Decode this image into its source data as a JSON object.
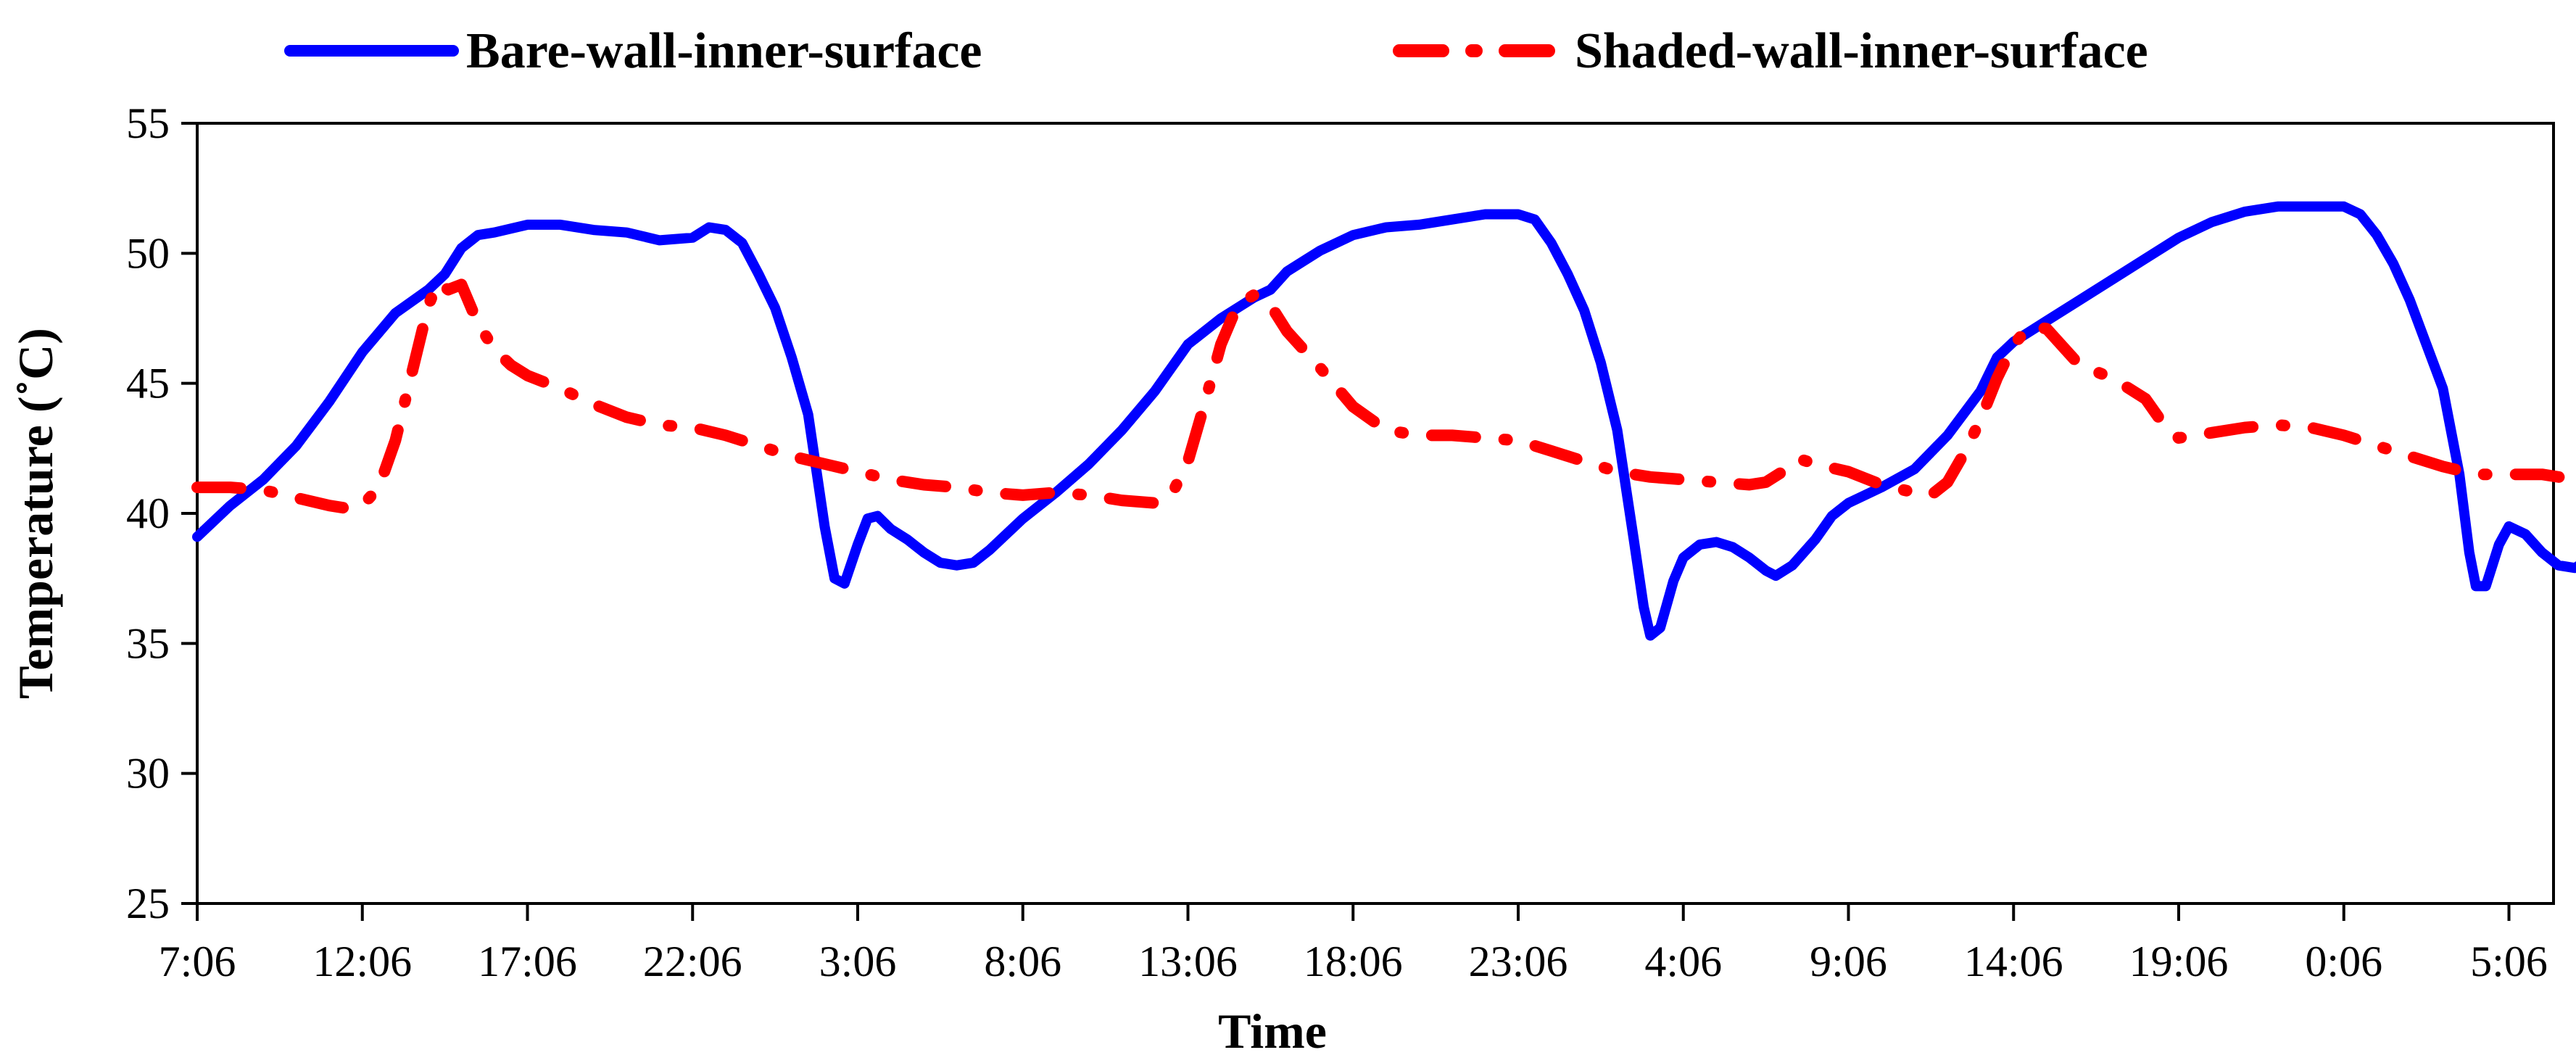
{
  "chart_data": {
    "type": "line",
    "title": "",
    "xlabel": "Time",
    "ylabel": "Temperature (˚C)",
    "ylim": [
      25,
      55
    ],
    "yticks": [
      25,
      30,
      35,
      40,
      45,
      50,
      55
    ],
    "xlim": [
      0,
      72
    ],
    "x_unit": "hours from first tick (7:06)",
    "x_tick_labels": [
      "7:06",
      "12:06",
      "17:06",
      "22:06",
      "3:06",
      "8:06",
      "13:06",
      "18:06",
      "23:06",
      "4:06",
      "9:06",
      "14:06",
      "19:06",
      "0:06",
      "5:06"
    ],
    "legend_position": "top",
    "grid": false,
    "series": [
      {
        "name": "Bare-wall-inner-surface",
        "color": "#0000ff",
        "style": "solid",
        "points": [
          [
            0,
            39.1
          ],
          [
            1,
            40.3
          ],
          [
            2,
            41.3
          ],
          [
            3,
            42.6
          ],
          [
            4,
            44.3
          ],
          [
            5,
            46.2
          ],
          [
            6,
            47.7
          ],
          [
            7,
            48.6
          ],
          [
            7.5,
            49.2
          ],
          [
            8,
            50.2
          ],
          [
            8.5,
            50.7
          ],
          [
            9,
            50.8
          ],
          [
            10,
            51.1
          ],
          [
            11,
            51.1
          ],
          [
            12,
            50.9
          ],
          [
            13,
            50.8
          ],
          [
            14,
            50.5
          ],
          [
            15,
            50.6
          ],
          [
            15.5,
            51.0
          ],
          [
            16,
            50.9
          ],
          [
            16.5,
            50.4
          ],
          [
            17,
            49.2
          ],
          [
            17.5,
            47.9
          ],
          [
            18,
            46.0
          ],
          [
            18.5,
            43.8
          ],
          [
            19,
            39.5
          ],
          [
            19.3,
            37.5
          ],
          [
            19.6,
            37.3
          ],
          [
            20,
            38.8
          ],
          [
            20.3,
            39.8
          ],
          [
            20.6,
            39.9
          ],
          [
            21,
            39.4
          ],
          [
            21.5,
            39.0
          ],
          [
            22,
            38.5
          ],
          [
            22.5,
            38.1
          ],
          [
            23,
            38.0
          ],
          [
            23.5,
            38.1
          ],
          [
            24,
            38.6
          ],
          [
            25,
            39.8
          ],
          [
            26,
            40.8
          ],
          [
            27,
            41.9
          ],
          [
            28,
            43.2
          ],
          [
            29,
            44.7
          ],
          [
            29.5,
            45.6
          ],
          [
            30,
            46.5
          ],
          [
            31,
            47.5
          ],
          [
            32,
            48.3
          ],
          [
            32.5,
            48.6
          ],
          [
            33,
            49.3
          ],
          [
            34,
            50.1
          ],
          [
            35,
            50.7
          ],
          [
            36,
            51.0
          ],
          [
            37,
            51.1
          ],
          [
            38,
            51.3
          ],
          [
            39,
            51.5
          ],
          [
            40,
            51.5
          ],
          [
            40.5,
            51.3
          ],
          [
            41,
            50.4
          ],
          [
            41.5,
            49.2
          ],
          [
            42,
            47.8
          ],
          [
            42.5,
            45.8
          ],
          [
            43,
            43.2
          ],
          [
            43.5,
            39.0
          ],
          [
            43.8,
            36.4
          ],
          [
            44,
            35.3
          ],
          [
            44.3,
            35.6
          ],
          [
            44.7,
            37.4
          ],
          [
            45,
            38.3
          ],
          [
            45.5,
            38.8
          ],
          [
            46,
            38.9
          ],
          [
            46.5,
            38.7
          ],
          [
            47,
            38.3
          ],
          [
            47.5,
            37.8
          ],
          [
            47.8,
            37.6
          ],
          [
            48.3,
            38.0
          ],
          [
            49,
            39.0
          ],
          [
            49.5,
            39.9
          ],
          [
            50,
            40.4
          ],
          [
            51,
            41.0
          ],
          [
            52,
            41.7
          ],
          [
            53,
            43.0
          ],
          [
            54,
            44.7
          ],
          [
            54.5,
            46.0
          ],
          [
            55,
            46.6
          ],
          [
            56,
            47.4
          ],
          [
            57,
            48.2
          ],
          [
            58,
            49.0
          ],
          [
            59,
            49.8
          ],
          [
            60,
            50.6
          ],
          [
            61,
            51.2
          ],
          [
            62,
            51.6
          ],
          [
            63,
            51.8
          ],
          [
            64,
            51.8
          ],
          [
            65,
            51.8
          ],
          [
            65.5,
            51.5
          ],
          [
            66,
            50.7
          ],
          [
            66.5,
            49.6
          ],
          [
            67,
            48.2
          ],
          [
            67.5,
            46.5
          ],
          [
            68,
            44.8
          ],
          [
            68.5,
            41.5
          ],
          [
            68.8,
            38.5
          ],
          [
            69,
            37.2
          ],
          [
            69.3,
            37.2
          ],
          [
            69.7,
            38.8
          ],
          [
            70,
            39.5
          ],
          [
            70.5,
            39.2
          ],
          [
            71,
            38.5
          ],
          [
            71.5,
            38.0
          ],
          [
            72,
            37.9
          ],
          [
            72.5,
            38.3
          ],
          [
            73,
            38.8
          ],
          [
            73.5,
            38.8
          ],
          [
            73.7,
            38.7
          ]
        ]
      },
      {
        "name": "Shaded-wall-inner-surface",
        "color": "#ff0000",
        "style": "dashed",
        "points": [
          [
            0,
            41.0
          ],
          [
            1,
            41.0
          ],
          [
            2,
            40.9
          ],
          [
            3,
            40.6
          ],
          [
            4,
            40.3
          ],
          [
            4.5,
            40.2
          ],
          [
            5,
            40.3
          ],
          [
            5.5,
            41.0
          ],
          [
            6,
            42.8
          ],
          [
            6.5,
            45.4
          ],
          [
            7,
            48.0
          ],
          [
            7.3,
            48.9
          ],
          [
            7.6,
            48.6
          ],
          [
            8,
            48.8
          ],
          [
            8.5,
            47.3
          ],
          [
            9,
            46.3
          ],
          [
            9.5,
            45.7
          ],
          [
            10,
            45.3
          ],
          [
            11,
            44.8
          ],
          [
            12,
            44.2
          ],
          [
            13,
            43.7
          ],
          [
            14,
            43.4
          ],
          [
            15,
            43.3
          ],
          [
            16,
            43.0
          ],
          [
            17,
            42.6
          ],
          [
            18,
            42.2
          ],
          [
            19,
            41.9
          ],
          [
            20,
            41.6
          ],
          [
            21,
            41.3
          ],
          [
            22,
            41.1
          ],
          [
            23,
            41.0
          ],
          [
            24,
            40.8
          ],
          [
            25,
            40.7
          ],
          [
            26,
            40.8
          ],
          [
            27,
            40.7
          ],
          [
            28,
            40.5
          ],
          [
            29,
            40.4
          ],
          [
            29.5,
            40.7
          ],
          [
            30,
            42.0
          ],
          [
            30.5,
            44.2
          ],
          [
            31,
            46.5
          ],
          [
            31.5,
            48.0
          ],
          [
            32,
            48.4
          ],
          [
            32.5,
            48.0
          ],
          [
            33,
            47.0
          ],
          [
            33.5,
            46.3
          ],
          [
            34,
            45.6
          ],
          [
            35,
            44.1
          ],
          [
            36,
            43.2
          ],
          [
            37,
            43.0
          ],
          [
            38,
            43.0
          ],
          [
            39,
            42.9
          ],
          [
            40,
            42.8
          ],
          [
            41,
            42.4
          ],
          [
            42,
            42.0
          ],
          [
            43,
            41.6
          ],
          [
            44,
            41.4
          ],
          [
            45,
            41.3
          ],
          [
            46,
            41.2
          ],
          [
            47,
            41.1
          ],
          [
            47.5,
            41.2
          ],
          [
            48,
            41.6
          ],
          [
            48.5,
            42.1
          ],
          [
            49,
            41.9
          ],
          [
            50,
            41.6
          ],
          [
            51,
            41.1
          ],
          [
            52,
            40.8
          ],
          [
            52.5,
            40.7
          ],
          [
            53,
            41.2
          ],
          [
            53.5,
            42.3
          ],
          [
            54,
            43.6
          ],
          [
            54.5,
            45.2
          ],
          [
            55,
            46.5
          ],
          [
            55.5,
            47.2
          ],
          [
            56,
            47.1
          ],
          [
            56.5,
            46.4
          ],
          [
            57,
            45.7
          ],
          [
            58,
            45.2
          ],
          [
            59,
            44.4
          ],
          [
            59.5,
            43.5
          ],
          [
            60,
            42.9
          ],
          [
            61,
            43.1
          ],
          [
            62,
            43.3
          ],
          [
            63,
            43.4
          ],
          [
            64,
            43.3
          ],
          [
            65,
            43.0
          ],
          [
            66,
            42.6
          ],
          [
            67,
            42.2
          ],
          [
            68,
            41.8
          ],
          [
            69,
            41.5
          ],
          [
            70,
            41.5
          ],
          [
            71,
            41.5
          ],
          [
            72,
            41.3
          ],
          [
            72.5,
            41.2
          ]
        ]
      }
    ]
  }
}
